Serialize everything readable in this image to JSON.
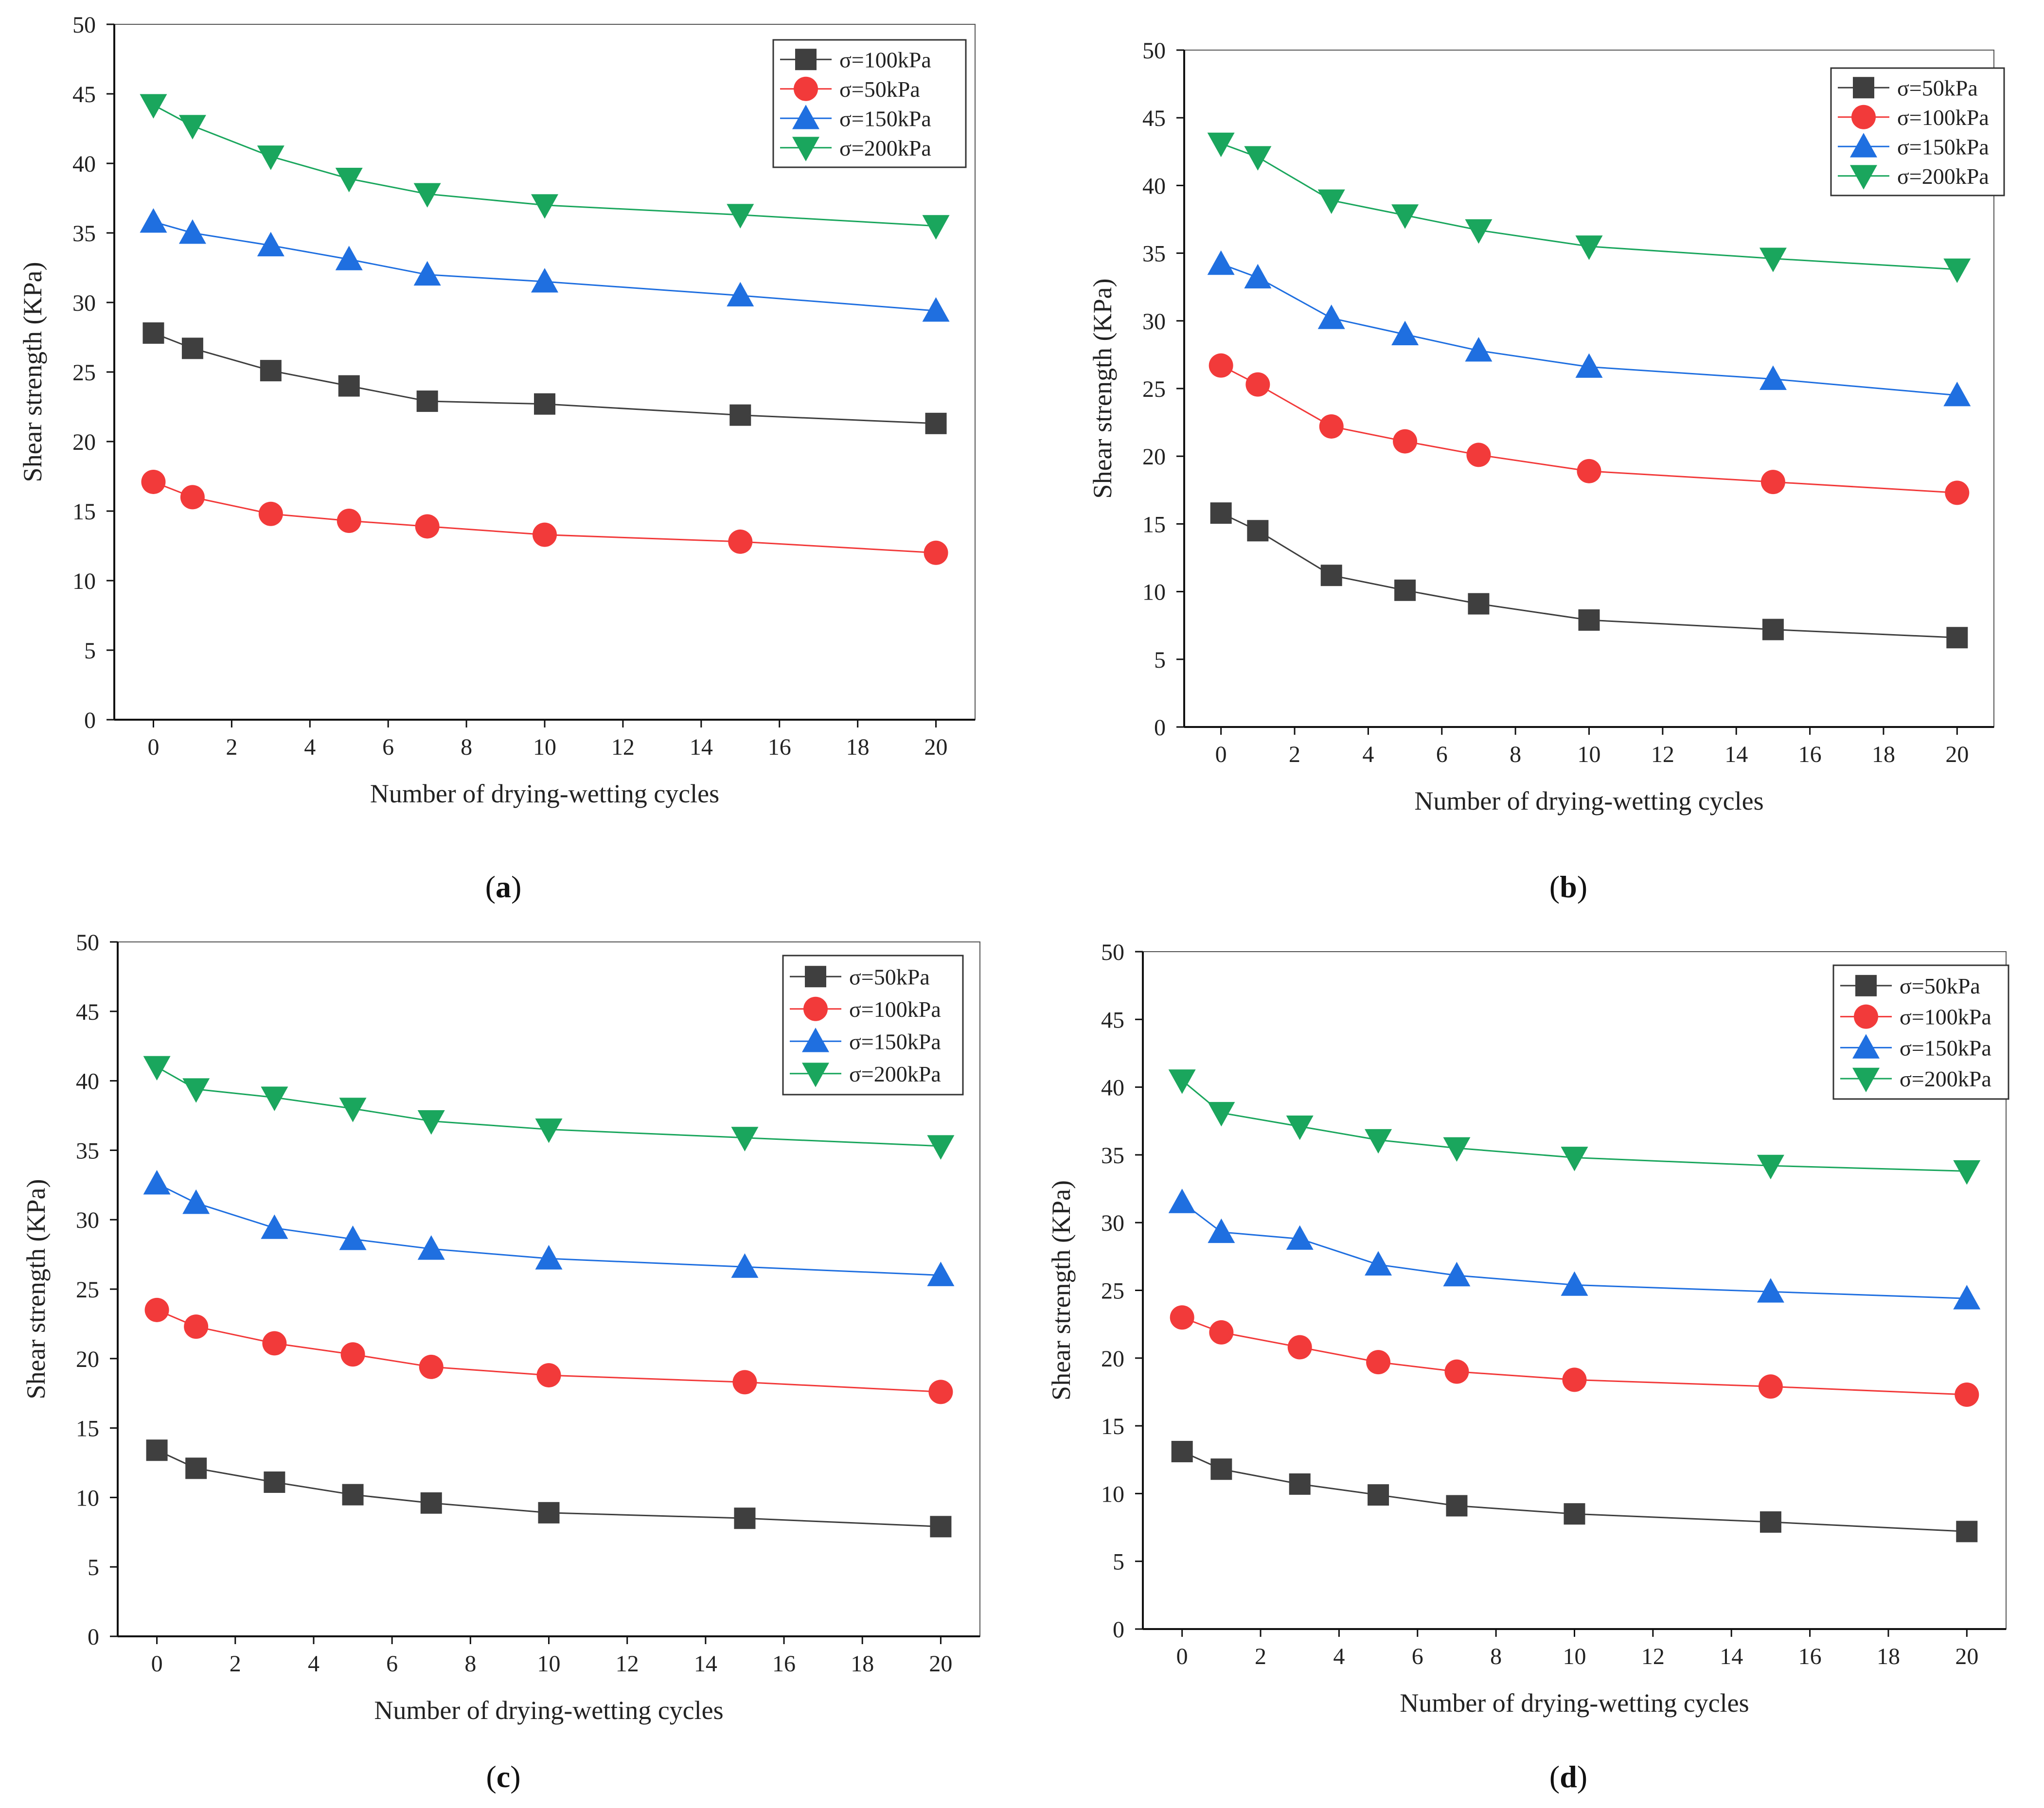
{
  "chart_data": [
    {
      "type": "line",
      "caption": {
        "open": "(",
        "letter": "a",
        "close": ")"
      },
      "xlabel": "Number of drying-wetting cycles",
      "ylabel": "Shear strength  (KPa)",
      "xlim": [
        -1,
        21
      ],
      "ylim": [
        0,
        50
      ],
      "xticks": [
        0,
        2,
        4,
        6,
        8,
        10,
        12,
        14,
        16,
        18,
        20
      ],
      "yticks": [
        0,
        5,
        10,
        15,
        20,
        25,
        30,
        35,
        40,
        45,
        50
      ],
      "x": [
        0,
        1,
        3,
        5,
        7,
        10,
        15,
        20
      ],
      "legend_position": "top-right",
      "series": [
        {
          "name": "σ=100kPa",
          "marker": "square",
          "color": "#3f3f3f",
          "values": [
            27.8,
            26.7,
            25.1,
            24.0,
            22.9,
            22.7,
            21.9,
            21.3
          ]
        },
        {
          "name": "σ=50kPa",
          "marker": "circle",
          "color": "#f23a3a",
          "values": [
            17.1,
            16.0,
            14.8,
            14.3,
            13.9,
            13.3,
            12.8,
            12.0
          ]
        },
        {
          "name": "σ=150kPa",
          "marker": "triangle-up",
          "color": "#1f6fe0",
          "values": [
            35.8,
            35.0,
            34.1,
            33.1,
            32.0,
            31.5,
            30.5,
            29.4
          ]
        },
        {
          "name": "σ=200kPa",
          "marker": "triangle-down",
          "color": "#1aa65d",
          "values": [
            44.2,
            42.7,
            40.5,
            38.9,
            37.8,
            37.0,
            36.3,
            35.5
          ]
        }
      ]
    },
    {
      "type": "line",
      "caption": {
        "open": "(",
        "letter": "b",
        "close": ")"
      },
      "xlabel": "Number of drying-wetting cycles",
      "ylabel": "Shear strength  (KPa)",
      "xlim": [
        -1,
        21
      ],
      "ylim": [
        0,
        50
      ],
      "xticks": [
        0,
        2,
        4,
        6,
        8,
        10,
        12,
        14,
        16,
        18,
        20
      ],
      "yticks": [
        0,
        5,
        10,
        15,
        20,
        25,
        30,
        35,
        40,
        45,
        50
      ],
      "x": [
        0,
        1,
        3,
        5,
        7,
        10,
        15,
        20
      ],
      "legend_position": "top-right",
      "series": [
        {
          "name": "σ=50kPa",
          "marker": "square",
          "color": "#3f3f3f",
          "values": [
            15.8,
            14.5,
            11.2,
            10.1,
            9.1,
            7.9,
            7.2,
            6.6
          ]
        },
        {
          "name": "σ=100kPa",
          "marker": "circle",
          "color": "#f23a3a",
          "values": [
            26.7,
            25.3,
            22.2,
            21.1,
            20.1,
            18.9,
            18.1,
            17.3
          ]
        },
        {
          "name": "σ=150kPa",
          "marker": "triangle-up",
          "color": "#1f6fe0",
          "values": [
            34.2,
            33.2,
            30.2,
            29.0,
            27.8,
            26.6,
            25.7,
            24.5
          ]
        },
        {
          "name": "σ=200kPa",
          "marker": "triangle-down",
          "color": "#1aa65d",
          "values": [
            43.1,
            42.1,
            38.9,
            37.8,
            36.7,
            35.5,
            34.6,
            33.8
          ]
        }
      ]
    },
    {
      "type": "line",
      "caption": {
        "open": "(",
        "letter": "c",
        "close": ")"
      },
      "xlabel": "Number of drying-wetting cycles",
      "ylabel": "Shear strength  (KPa)",
      "xlim": [
        -1,
        21
      ],
      "ylim": [
        0,
        50
      ],
      "xticks": [
        0,
        2,
        4,
        6,
        8,
        10,
        12,
        14,
        16,
        18,
        20
      ],
      "yticks": [
        0,
        5,
        10,
        15,
        20,
        25,
        30,
        35,
        40,
        45,
        50
      ],
      "x": [
        0,
        1,
        3,
        5,
        7,
        10,
        15,
        20
      ],
      "legend_position": "top-right",
      "series": [
        {
          "name": "σ=50kPa",
          "marker": "square",
          "color": "#3f3f3f",
          "values": [
            13.4,
            12.1,
            11.1,
            10.2,
            9.6,
            8.9,
            8.5,
            7.9
          ]
        },
        {
          "name": "σ=100kPa",
          "marker": "circle",
          "color": "#f23a3a",
          "values": [
            23.5,
            22.3,
            21.1,
            20.3,
            19.4,
            18.8,
            18.3,
            17.6
          ]
        },
        {
          "name": "σ=150kPa",
          "marker": "triangle-up",
          "color": "#1f6fe0",
          "values": [
            32.6,
            31.2,
            29.4,
            28.6,
            27.9,
            27.2,
            26.6,
            26.0
          ]
        },
        {
          "name": "σ=200kPa",
          "marker": "triangle-down",
          "color": "#1aa65d",
          "values": [
            41.0,
            39.4,
            38.8,
            38.0,
            37.1,
            36.5,
            35.9,
            35.3
          ]
        }
      ]
    },
    {
      "type": "line",
      "caption": {
        "open": "(",
        "letter": "d",
        "close": ")"
      },
      "xlabel": "Number of drying-wetting cycles",
      "ylabel": "Shear strength  (KPa)",
      "xlim": [
        -1,
        21
      ],
      "ylim": [
        0,
        50
      ],
      "xticks": [
        0,
        2,
        4,
        6,
        8,
        10,
        12,
        14,
        16,
        18,
        20
      ],
      "yticks": [
        0,
        5,
        10,
        15,
        20,
        25,
        30,
        35,
        40,
        45,
        50
      ],
      "x": [
        0,
        1,
        3,
        5,
        7,
        10,
        15,
        20
      ],
      "legend_position": "top-right",
      "series": [
        {
          "name": "σ=50kPa",
          "marker": "square",
          "color": "#3f3f3f",
          "values": [
            13.1,
            11.8,
            10.7,
            9.9,
            9.1,
            8.5,
            7.9,
            7.2
          ]
        },
        {
          "name": "σ=100kPa",
          "marker": "circle",
          "color": "#f23a3a",
          "values": [
            23.0,
            21.9,
            20.8,
            19.7,
            19.0,
            18.4,
            17.9,
            17.3
          ]
        },
        {
          "name": "σ=150kPa",
          "marker": "triangle-up",
          "color": "#1f6fe0",
          "values": [
            31.5,
            29.3,
            28.8,
            26.9,
            26.1,
            25.4,
            24.9,
            24.4
          ]
        },
        {
          "name": "σ=200kPa",
          "marker": "triangle-down",
          "color": "#1aa65d",
          "values": [
            40.5,
            38.1,
            37.1,
            36.1,
            35.5,
            34.8,
            34.2,
            33.8
          ]
        }
      ]
    }
  ]
}
